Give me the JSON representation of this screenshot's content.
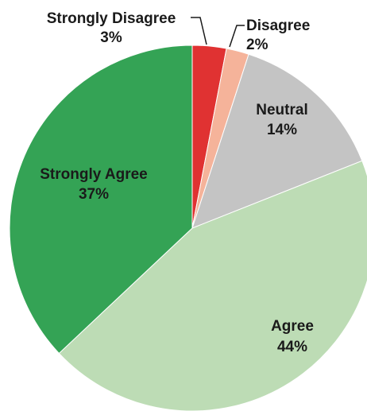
{
  "chart_data": {
    "type": "pie",
    "title": "",
    "categories": [
      "Strongly Disagree",
      "Disagree",
      "Neutral",
      "Agree",
      "Strongly Agree"
    ],
    "values": [
      3,
      2,
      14,
      44,
      37
    ],
    "value_labels": [
      "3%",
      "2%",
      "14%",
      "44%",
      "37%"
    ],
    "colors": [
      "#e03232",
      "#f5b39a",
      "#c4c4c4",
      "#bddcb5",
      "#34a355"
    ],
    "start_angle_deg": 0,
    "direction": "clockwise",
    "legend": "none"
  }
}
